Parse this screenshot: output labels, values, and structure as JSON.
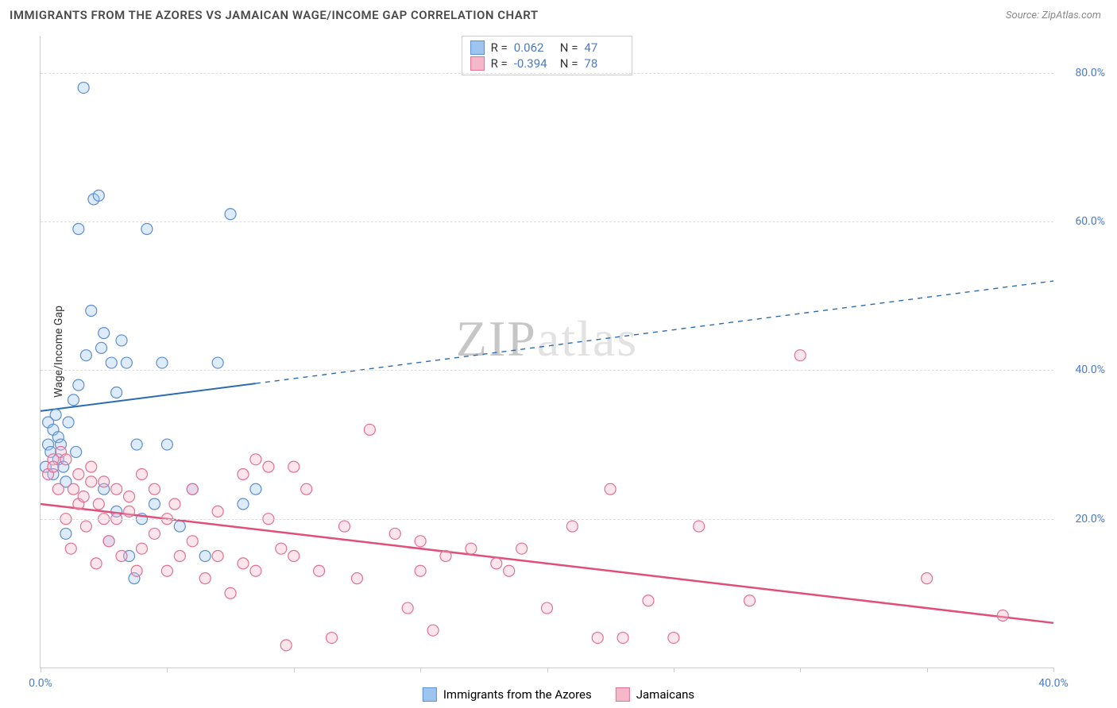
{
  "title": "IMMIGRANTS FROM THE AZORES VS JAMAICAN WAGE/INCOME GAP CORRELATION CHART",
  "source": "Source: ZipAtlas.com",
  "watermark_a": "ZIP",
  "watermark_b": "atlas",
  "chart": {
    "type": "scatter",
    "ylabel": "Wage/Income Gap",
    "xlim": [
      0,
      40
    ],
    "ylim": [
      0,
      85
    ],
    "x_ticks": [
      0,
      5,
      10,
      15,
      20,
      25,
      30,
      35,
      40
    ],
    "x_tick_labels": {
      "0": "0.0%",
      "40": "40.0%"
    },
    "y_ticks": [
      20,
      40,
      60,
      80
    ],
    "y_tick_labels": {
      "20": "20.0%",
      "40": "40.0%",
      "60": "60.0%",
      "80": "80.0%"
    },
    "grid_color": "#dddddd",
    "axis_color": "#cccccc",
    "tick_label_color": "#4a7bc8",
    "marker_radius": 7,
    "marker_fill_opacity": 0.35,
    "marker_stroke_width": 1.2,
    "series": [
      {
        "name": "Immigrants from the Azores",
        "color_fill": "#9ec5f0",
        "color_stroke": "#5a8fd0",
        "R": "0.062",
        "N": "47",
        "trend": {
          "y_at_xmin": 34.5,
          "y_at_xmax": 52.0,
          "solid_until_x": 8.5,
          "color": "#2b6cb0",
          "width": 2
        },
        "points": [
          [
            0.2,
            27
          ],
          [
            0.3,
            30
          ],
          [
            0.3,
            33
          ],
          [
            0.4,
            29
          ],
          [
            0.5,
            32
          ],
          [
            0.5,
            26
          ],
          [
            0.6,
            34
          ],
          [
            0.7,
            28
          ],
          [
            0.7,
            31
          ],
          [
            0.8,
            30
          ],
          [
            0.9,
            27
          ],
          [
            1.0,
            25
          ],
          [
            1.0,
            18
          ],
          [
            1.1,
            33
          ],
          [
            1.3,
            36
          ],
          [
            1.4,
            29
          ],
          [
            1.5,
            38
          ],
          [
            1.5,
            59
          ],
          [
            1.7,
            78
          ],
          [
            1.8,
            42
          ],
          [
            2.0,
            48
          ],
          [
            2.1,
            63
          ],
          [
            2.3,
            63.5
          ],
          [
            2.4,
            43
          ],
          [
            2.5,
            45
          ],
          [
            2.5,
            24
          ],
          [
            2.7,
            17
          ],
          [
            2.8,
            41
          ],
          [
            3.0,
            37
          ],
          [
            3.0,
            21
          ],
          [
            3.2,
            44
          ],
          [
            3.4,
            41
          ],
          [
            3.5,
            15
          ],
          [
            3.7,
            12
          ],
          [
            3.8,
            30
          ],
          [
            4.0,
            20
          ],
          [
            4.2,
            59
          ],
          [
            4.5,
            22
          ],
          [
            4.8,
            41
          ],
          [
            5.0,
            30
          ],
          [
            5.5,
            19
          ],
          [
            6.0,
            24
          ],
          [
            6.5,
            15
          ],
          [
            7.0,
            41
          ],
          [
            7.5,
            61
          ],
          [
            8.0,
            22
          ],
          [
            8.5,
            24
          ]
        ]
      },
      {
        "name": "Jamaicans",
        "color_fill": "#f5b8c8",
        "color_stroke": "#e27095",
        "R": "-0.394",
        "N": "78",
        "trend": {
          "y_at_xmin": 22.0,
          "y_at_xmax": 6.0,
          "solid_until_x": 40,
          "color": "#e04f7a",
          "width": 2.5
        },
        "points": [
          [
            0.3,
            26
          ],
          [
            0.5,
            28
          ],
          [
            0.5,
            27
          ],
          [
            0.7,
            24
          ],
          [
            0.8,
            29
          ],
          [
            1.0,
            28
          ],
          [
            1.0,
            20
          ],
          [
            1.2,
            16
          ],
          [
            1.3,
            24
          ],
          [
            1.5,
            26
          ],
          [
            1.5,
            22
          ],
          [
            1.7,
            23
          ],
          [
            1.8,
            19
          ],
          [
            2.0,
            27
          ],
          [
            2.0,
            25
          ],
          [
            2.2,
            14
          ],
          [
            2.3,
            22
          ],
          [
            2.5,
            25
          ],
          [
            2.5,
            20
          ],
          [
            2.7,
            17
          ],
          [
            3.0,
            24
          ],
          [
            3.0,
            20
          ],
          [
            3.2,
            15
          ],
          [
            3.5,
            23
          ],
          [
            3.5,
            21
          ],
          [
            3.8,
            13
          ],
          [
            4.0,
            26
          ],
          [
            4.0,
            16
          ],
          [
            4.5,
            24
          ],
          [
            4.5,
            18
          ],
          [
            5.0,
            20
          ],
          [
            5.0,
            13
          ],
          [
            5.3,
            22
          ],
          [
            5.5,
            15
          ],
          [
            6.0,
            24
          ],
          [
            6.0,
            17
          ],
          [
            6.5,
            12
          ],
          [
            7.0,
            15
          ],
          [
            7.0,
            21
          ],
          [
            7.5,
            10
          ],
          [
            8.0,
            26
          ],
          [
            8.0,
            14
          ],
          [
            8.5,
            28
          ],
          [
            8.5,
            13
          ],
          [
            9.0,
            20
          ],
          [
            9.0,
            27
          ],
          [
            9.5,
            16
          ],
          [
            9.7,
            3
          ],
          [
            10.0,
            15
          ],
          [
            10.0,
            27
          ],
          [
            10.5,
            24
          ],
          [
            11.0,
            13
          ],
          [
            11.5,
            4
          ],
          [
            12.0,
            19
          ],
          [
            12.5,
            12
          ],
          [
            13.0,
            32
          ],
          [
            14.0,
            18
          ],
          [
            14.5,
            8
          ],
          [
            15.0,
            13
          ],
          [
            15.0,
            17
          ],
          [
            15.5,
            5
          ],
          [
            16.0,
            15
          ],
          [
            17.0,
            16
          ],
          [
            18.0,
            14
          ],
          [
            18.5,
            13
          ],
          [
            19.0,
            16
          ],
          [
            20.0,
            8
          ],
          [
            21.0,
            19
          ],
          [
            22.0,
            4
          ],
          [
            22.5,
            24
          ],
          [
            23.0,
            4
          ],
          [
            24.0,
            9
          ],
          [
            25.0,
            4
          ],
          [
            26.0,
            19
          ],
          [
            28.0,
            9
          ],
          [
            30.0,
            42
          ],
          [
            35.0,
            12
          ],
          [
            38.0,
            7
          ]
        ]
      }
    ]
  },
  "stats_legend": {
    "r_label": "R =",
    "n_label": "N ="
  },
  "bottom_legend": {
    "series1": "Immigrants from the Azores",
    "series2": "Jamaicans"
  }
}
